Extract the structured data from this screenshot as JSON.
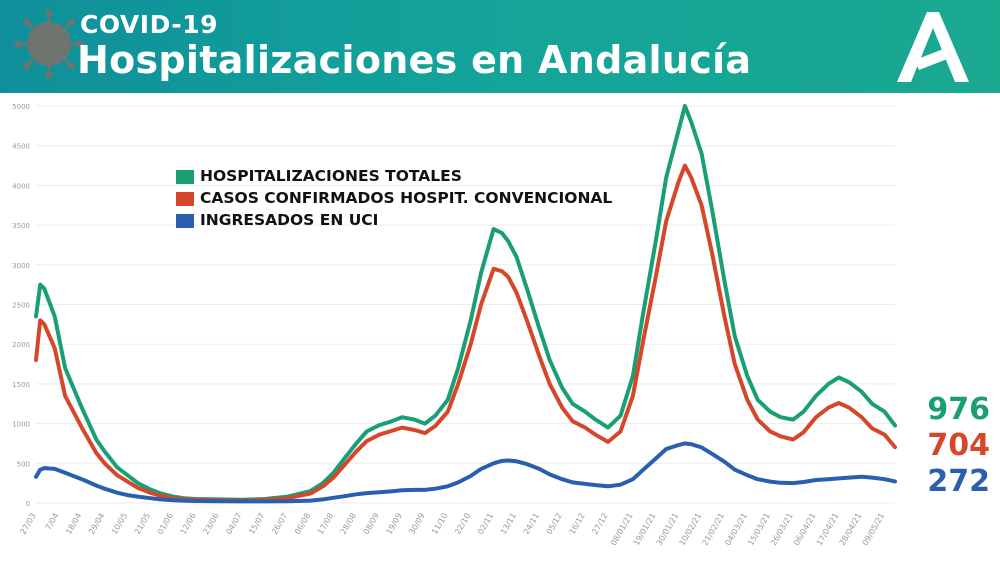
{
  "header": {
    "subtitle": "COVID-19",
    "title": "Hospitalizaciones en Andalucía",
    "logo_icon": "junta-andalucia-logo-icon",
    "virus_icon": "coronavirus-icon",
    "bg_color": "#13a39a"
  },
  "final_values": {
    "total": "976",
    "convencional": "704",
    "uci": "272"
  },
  "chart_data": {
    "type": "line",
    "title": "Hospitalizaciones en Andalucía",
    "xlabel": "",
    "ylabel": "",
    "ylim": [
      0,
      5000
    ],
    "y_ticks": [
      0,
      500,
      1000,
      1500,
      2000,
      2500,
      3000,
      3500,
      4000,
      4500,
      5000
    ],
    "grid": true,
    "legend": "top-left",
    "x_tick_labels": [
      "27/03",
      "7/04",
      "18/04",
      "29/04",
      "10/05",
      "21/05",
      "01/06",
      "12/06",
      "23/06",
      "04/07",
      "15/07",
      "26/07",
      "06/08",
      "17/08",
      "28/08",
      "08/09",
      "19/09",
      "30/09",
      "11/10",
      "22/10",
      "02/11",
      "13/11",
      "24/11",
      "05/12",
      "16/12",
      "27/12",
      "08/01/21",
      "19/01/21",
      "30/01/21",
      "10/02/21",
      "21/02/21",
      "04/03/21",
      "15/03/21",
      "26/03/21",
      "06/04/21",
      "17/04/21",
      "28/04/21",
      "09/05/21"
    ],
    "series": [
      {
        "name": "HOSPITALIZACIONES TOTALES",
        "color": "#1a9e75",
        "points": [
          [
            "27/03",
            2350
          ],
          [
            "29/03",
            2750
          ],
          [
            "31/03",
            2700
          ],
          [
            "5/04",
            2350
          ],
          [
            "10/04",
            1700
          ],
          [
            "18/04",
            1200
          ],
          [
            "25/04",
            800
          ],
          [
            "29/04",
            650
          ],
          [
            "5/05",
            450
          ],
          [
            "10/05",
            350
          ],
          [
            "15/05",
            250
          ],
          [
            "21/05",
            170
          ],
          [
            "26/05",
            120
          ],
          [
            "01/06",
            80
          ],
          [
            "06/06",
            60
          ],
          [
            "12/06",
            50
          ],
          [
            "23/06",
            45
          ],
          [
            "04/07",
            40
          ],
          [
            "15/07",
            50
          ],
          [
            "26/07",
            80
          ],
          [
            "06/08",
            150
          ],
          [
            "12/08",
            250
          ],
          [
            "17/08",
            380
          ],
          [
            "22/08",
            550
          ],
          [
            "28/08",
            750
          ],
          [
            "02/09",
            900
          ],
          [
            "08/09",
            980
          ],
          [
            "13/09",
            1020
          ],
          [
            "19/09",
            1080
          ],
          [
            "25/09",
            1050
          ],
          [
            "30/09",
            1000
          ],
          [
            "05/10",
            1100
          ],
          [
            "11/10",
            1300
          ],
          [
            "16/10",
            1700
          ],
          [
            "22/10",
            2300
          ],
          [
            "27/10",
            2900
          ],
          [
            "02/11",
            3450
          ],
          [
            "06/11",
            3400
          ],
          [
            "09/11",
            3300
          ],
          [
            "13/11",
            3100
          ],
          [
            "18/11",
            2700
          ],
          [
            "24/11",
            2200
          ],
          [
            "29/11",
            1800
          ],
          [
            "05/12",
            1450
          ],
          [
            "10/12",
            1250
          ],
          [
            "16/12",
            1150
          ],
          [
            "21/12",
            1050
          ],
          [
            "27/12",
            950
          ],
          [
            "02/01/21",
            1100
          ],
          [
            "08/01/21",
            1600
          ],
          [
            "13/01/21",
            2400
          ],
          [
            "19/01/21",
            3300
          ],
          [
            "24/01/21",
            4100
          ],
          [
            "30/01/21",
            4700
          ],
          [
            "02/02/21",
            5000
          ],
          [
            "05/02/21",
            4800
          ],
          [
            "10/02/21",
            4400
          ],
          [
            "15/02/21",
            3700
          ],
          [
            "21/02/21",
            2800
          ],
          [
            "26/02/21",
            2100
          ],
          [
            "04/03/21",
            1600
          ],
          [
            "09/03/21",
            1300
          ],
          [
            "15/03/21",
            1150
          ],
          [
            "20/03/21",
            1080
          ],
          [
            "26/03/21",
            1050
          ],
          [
            "31/03/21",
            1150
          ],
          [
            "06/04/21",
            1350
          ],
          [
            "12/04/21",
            1500
          ],
          [
            "17/04/21",
            1580
          ],
          [
            "22/04/21",
            1520
          ],
          [
            "28/04/21",
            1400
          ],
          [
            "03/05/21",
            1250
          ],
          [
            "09/05/21",
            1150
          ],
          [
            "14/05/21",
            976
          ]
        ]
      },
      {
        "name": "CASOS CONFIRMADOS HOSPIT. CONVENCIONAL",
        "color": "#d4472a",
        "points": [
          [
            "27/03",
            1800
          ],
          [
            "29/03",
            2300
          ],
          [
            "31/03",
            2250
          ],
          [
            "5/04",
            1950
          ],
          [
            "10/04",
            1350
          ],
          [
            "18/04",
            950
          ],
          [
            "25/04",
            630
          ],
          [
            "29/04",
            500
          ],
          [
            "5/05",
            350
          ],
          [
            "10/05",
            270
          ],
          [
            "15/05",
            190
          ],
          [
            "21/05",
            130
          ],
          [
            "26/05",
            90
          ],
          [
            "01/06",
            60
          ],
          [
            "06/06",
            45
          ],
          [
            "12/06",
            40
          ],
          [
            "23/06",
            35
          ],
          [
            "04/07",
            30
          ],
          [
            "15/07",
            40
          ],
          [
            "26/07",
            60
          ],
          [
            "06/08",
            120
          ],
          [
            "12/08",
            210
          ],
          [
            "17/08",
            320
          ],
          [
            "22/08",
            470
          ],
          [
            "28/08",
            650
          ],
          [
            "02/09",
            780
          ],
          [
            "08/09",
            860
          ],
          [
            "13/09",
            900
          ],
          [
            "19/09",
            950
          ],
          [
            "25/09",
            920
          ],
          [
            "30/09",
            880
          ],
          [
            "05/10",
            970
          ],
          [
            "11/10",
            1150
          ],
          [
            "16/10",
            1500
          ],
          [
            "22/10",
            2000
          ],
          [
            "27/10",
            2500
          ],
          [
            "02/11",
            2950
          ],
          [
            "06/11",
            2920
          ],
          [
            "09/11",
            2850
          ],
          [
            "13/11",
            2650
          ],
          [
            "18/11",
            2300
          ],
          [
            "24/11",
            1850
          ],
          [
            "29/11",
            1500
          ],
          [
            "05/12",
            1200
          ],
          [
            "10/12",
            1030
          ],
          [
            "16/12",
            950
          ],
          [
            "21/12",
            860
          ],
          [
            "27/12",
            770
          ],
          [
            "02/01/21",
            900
          ],
          [
            "08/01/21",
            1350
          ],
          [
            "13/01/21",
            2050
          ],
          [
            "19/01/21",
            2850
          ],
          [
            "24/01/21",
            3550
          ],
          [
            "30/01/21",
            4050
          ],
          [
            "02/02/21",
            4250
          ],
          [
            "05/02/21",
            4100
          ],
          [
            "10/02/21",
            3750
          ],
          [
            "15/02/21",
            3150
          ],
          [
            "21/02/21",
            2350
          ],
          [
            "26/02/21",
            1750
          ],
          [
            "04/03/21",
            1300
          ],
          [
            "09/03/21",
            1050
          ],
          [
            "15/03/21",
            900
          ],
          [
            "20/03/21",
            840
          ],
          [
            "26/03/21",
            800
          ],
          [
            "31/03/21",
            890
          ],
          [
            "06/04/21",
            1080
          ],
          [
            "12/04/21",
            1200
          ],
          [
            "17/04/21",
            1260
          ],
          [
            "22/04/21",
            1200
          ],
          [
            "28/04/21",
            1080
          ],
          [
            "03/05/21",
            940
          ],
          [
            "09/05/21",
            860
          ],
          [
            "14/05/21",
            704
          ]
        ]
      },
      {
        "name": "INGRESADOS EN UCI",
        "color": "#2a5fb0",
        "points": [
          [
            "27/03",
            330
          ],
          [
            "29/03",
            420
          ],
          [
            "31/03",
            440
          ],
          [
            "5/04",
            430
          ],
          [
            "10/04",
            380
          ],
          [
            "18/04",
            300
          ],
          [
            "25/04",
            220
          ],
          [
            "29/04",
            180
          ],
          [
            "5/05",
            130
          ],
          [
            "10/05",
            100
          ],
          [
            "15/05",
            80
          ],
          [
            "21/05",
            60
          ],
          [
            "26/05",
            45
          ],
          [
            "01/06",
            35
          ],
          [
            "06/06",
            30
          ],
          [
            "12/06",
            25
          ],
          [
            "23/06",
            22
          ],
          [
            "04/07",
            20
          ],
          [
            "15/07",
            20
          ],
          [
            "26/07",
            22
          ],
          [
            "06/08",
            30
          ],
          [
            "12/08",
            45
          ],
          [
            "17/08",
            65
          ],
          [
            "22/08",
            85
          ],
          [
            "28/08",
            110
          ],
          [
            "02/09",
            125
          ],
          [
            "08/09",
            135
          ],
          [
            "13/09",
            145
          ],
          [
            "19/09",
            160
          ],
          [
            "25/09",
            165
          ],
          [
            "30/09",
            165
          ],
          [
            "05/10",
            180
          ],
          [
            "11/10",
            210
          ],
          [
            "16/10",
            260
          ],
          [
            "22/10",
            340
          ],
          [
            "27/10",
            430
          ],
          [
            "02/11",
            500
          ],
          [
            "06/11",
            530
          ],
          [
            "09/11",
            535
          ],
          [
            "13/11",
            525
          ],
          [
            "18/11",
            490
          ],
          [
            "24/11",
            430
          ],
          [
            "29/11",
            360
          ],
          [
            "05/12",
            300
          ],
          [
            "10/12",
            260
          ],
          [
            "16/12",
            240
          ],
          [
            "21/12",
            225
          ],
          [
            "27/12",
            210
          ],
          [
            "02/01/21",
            230
          ],
          [
            "08/01/21",
            300
          ],
          [
            "13/01/21",
            420
          ],
          [
            "19/01/21",
            560
          ],
          [
            "24/01/21",
            680
          ],
          [
            "30/01/21",
            730
          ],
          [
            "02/02/21",
            750
          ],
          [
            "05/02/21",
            740
          ],
          [
            "10/02/21",
            700
          ],
          [
            "15/02/21",
            620
          ],
          [
            "21/02/21",
            520
          ],
          [
            "26/02/21",
            420
          ],
          [
            "04/03/21",
            350
          ],
          [
            "09/03/21",
            300
          ],
          [
            "15/03/21",
            270
          ],
          [
            "20/03/21",
            255
          ],
          [
            "26/03/21",
            250
          ],
          [
            "31/03/21",
            265
          ],
          [
            "06/04/21",
            290
          ],
          [
            "12/04/21",
            300
          ],
          [
            "17/04/21",
            310
          ],
          [
            "22/04/21",
            320
          ],
          [
            "28/04/21",
            330
          ],
          [
            "03/05/21",
            320
          ],
          [
            "09/05/21",
            300
          ],
          [
            "14/05/21",
            272
          ]
        ]
      }
    ]
  }
}
